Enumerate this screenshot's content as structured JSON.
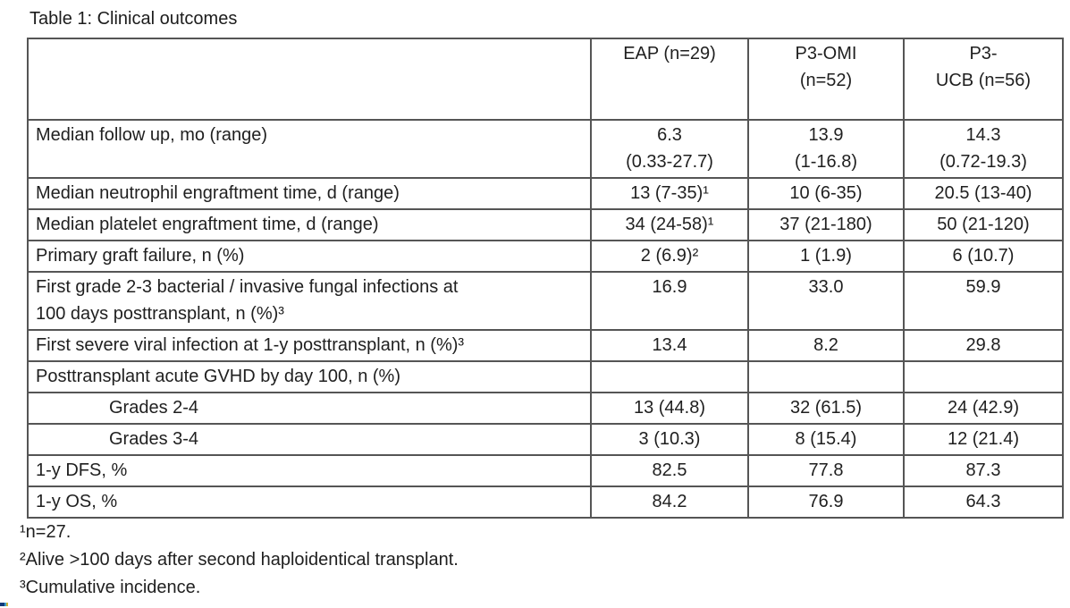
{
  "title": "Table 1: Clinical outcomes",
  "table": {
    "columns": [
      "",
      "EAP (n=29)",
      "P3-OMI\n(n=52)",
      "P3-\nUCB (n=56)"
    ],
    "rows": [
      {
        "label": "Median follow up, mo (range)",
        "indent": false,
        "values": [
          "6.3\n(0.33-27.7)",
          "13.9\n(1-16.8)",
          "14.3\n(0.72-19.3)"
        ]
      },
      {
        "label": "Median neutrophil engraftment time, d (range)",
        "indent": false,
        "values": [
          "13 (7-35)¹",
          "10 (6-35)",
          "20.5 (13-40)"
        ]
      },
      {
        "label": "Median platelet engraftment time, d (range)",
        "indent": false,
        "values": [
          "34 (24-58)¹",
          "37 (21-180)",
          "50 (21-120)"
        ]
      },
      {
        "label": "Primary graft failure, n (%)",
        "indent": false,
        "values": [
          "2 (6.9)²",
          "1 (1.9)",
          "6 (10.7)"
        ]
      },
      {
        "label": "First grade 2-3 bacterial / invasive fungal infections at\n100 days posttransplant, n (%)³",
        "indent": false,
        "values": [
          "16.9",
          "33.0",
          "59.9"
        ]
      },
      {
        "label": "First severe viral infection at 1-y posttransplant, n (%)³",
        "indent": false,
        "values": [
          "13.4",
          "8.2",
          "29.8"
        ]
      },
      {
        "label": "Posttransplant acute GVHD by day 100, n (%)",
        "indent": false,
        "values": [
          "",
          "",
          ""
        ]
      },
      {
        "label": "Grades 2-4",
        "indent": true,
        "values": [
          "13 (44.8)",
          "32 (61.5)",
          "24 (42.9)"
        ]
      },
      {
        "label": "Grades 3-4",
        "indent": true,
        "values": [
          "3 (10.3)",
          "8 (15.4)",
          "12 (21.4)"
        ]
      },
      {
        "label": "1-y DFS, %",
        "indent": false,
        "values": [
          "82.5",
          "77.8",
          "87.3"
        ]
      },
      {
        "label": "1-y OS, %",
        "indent": false,
        "values": [
          "84.2",
          "76.9",
          "64.3"
        ]
      }
    ]
  },
  "footnotes": [
    "¹n=27.",
    "²Alive >100 days after second haploidentical transplant.",
    "³Cumulative incidence."
  ]
}
